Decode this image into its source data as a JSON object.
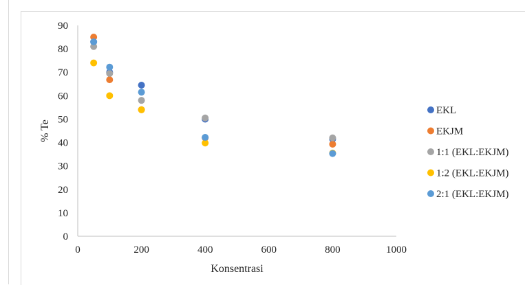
{
  "chart_data": {
    "type": "scatter",
    "xlabel": "Konsentrasi",
    "ylabel": "% Te",
    "xlim": [
      0,
      1000
    ],
    "ylim": [
      0,
      90
    ],
    "xticks": [
      0,
      200,
      400,
      600,
      800,
      1000
    ],
    "yticks": [
      0,
      10,
      20,
      30,
      40,
      50,
      60,
      70,
      80,
      90
    ],
    "grid": false,
    "legend_position": "right",
    "series": [
      {
        "name": "EKL",
        "color": "#4472c4",
        "x": [
          50,
          100,
          200,
          400,
          800
        ],
        "y": [
          83,
          70,
          64.5,
          50,
          41.5
        ]
      },
      {
        "name": "EKJM",
        "color": "#ed7d31",
        "x": [
          50,
          100,
          200,
          400,
          800
        ],
        "y": [
          85,
          66.8,
          54,
          42,
          39.3
        ]
      },
      {
        "name": "1:1 (EKL:EKJM)",
        "color": "#a5a5a5",
        "x": [
          50,
          100,
          200,
          400,
          800
        ],
        "y": [
          81,
          69.5,
          58,
          50.5,
          42
        ]
      },
      {
        "name": "1:2 (EKL:EKJM)",
        "color": "#ffc000",
        "x": [
          50,
          100,
          200,
          400,
          800
        ],
        "y": [
          74,
          60,
          54,
          39.8,
          35.5
        ]
      },
      {
        "name": "2:1 (EKL:EKJM)",
        "color": "#5b9bd5",
        "x": [
          50,
          100,
          200,
          400,
          800
        ],
        "y": [
          83,
          72.2,
          61.5,
          42.2,
          35.3
        ]
      }
    ]
  }
}
